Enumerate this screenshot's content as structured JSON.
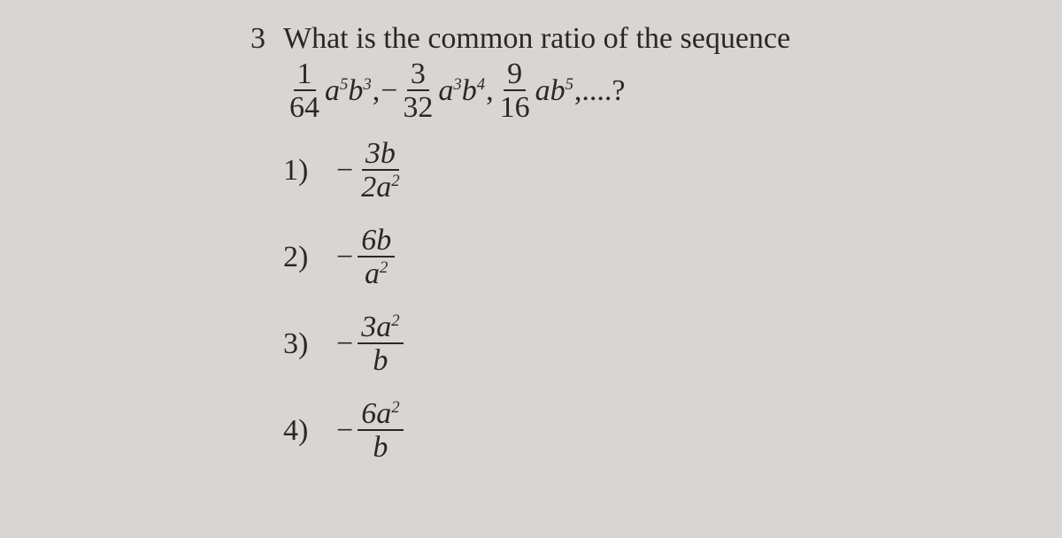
{
  "question": {
    "number": "3",
    "text": "What is the common ratio of the sequence",
    "sequence": {
      "term1": {
        "num": "1",
        "den": "64",
        "var": "a",
        "exp1": "5",
        "var2": "b",
        "exp2": "3"
      },
      "term2": {
        "sign": "−",
        "num": "3",
        "den": "32",
        "var": "a",
        "exp1": "3",
        "var2": "b",
        "exp2": "4"
      },
      "term3": {
        "num": "9",
        "den": "16",
        "var": "ab",
        "exp2": "5"
      },
      "ending": ",....?"
    },
    "answers": [
      {
        "num": "1)",
        "sign": "−",
        "fnum": "3b",
        "fden_base": "2a",
        "fden_exp": "2"
      },
      {
        "num": "2)",
        "sign": "−",
        "fnum": "6b",
        "fden_base": "a",
        "fden_exp": "2"
      },
      {
        "num": "3)",
        "sign": "−",
        "fnum_base": "3a",
        "fnum_exp": "2",
        "fden": "b"
      },
      {
        "num": "4)",
        "sign": "−",
        "fnum_base": "6a",
        "fnum_exp": "2",
        "fden": "b"
      }
    ]
  },
  "style": {
    "background_color": "#d8d6d2",
    "text_color": "#2a2826",
    "font_family": "Georgia, Times New Roman, serif",
    "question_fontsize": 34,
    "answer_fontsize": 34
  }
}
